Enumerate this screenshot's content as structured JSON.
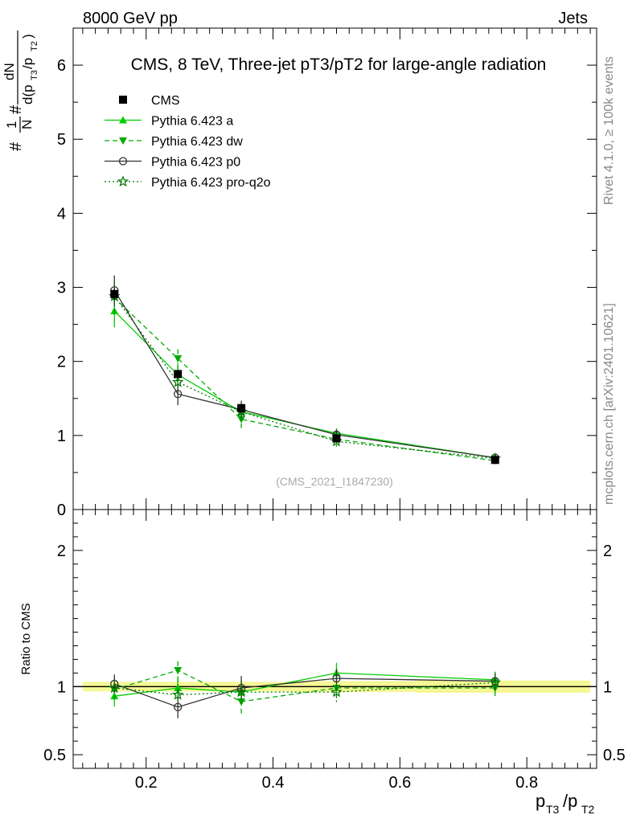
{
  "header": {
    "left": "8000 GeV pp",
    "right": "Jets"
  },
  "side": {
    "rivet": "Rivet 4.1.0, ≥ 100k events",
    "mcplots": "mcplots.cern.ch [arXiv:2401.10621]"
  },
  "chart_data": {
    "type": "line",
    "title": "CMS, 8 TeV, Three-jet pT3/pT2 for large-angle radiation",
    "analysis_tag": "(CMS_2021_I1847230)",
    "xlabel": "p_T3/p_T2",
    "ylabel": "#1/N #dN/d(p_T3/p_T2)",
    "ratio_ylabel": "Ratio to CMS",
    "xlim": [
      0.085,
      0.91
    ],
    "ylim": [
      0,
      6.5
    ],
    "ratio_ylim": [
      0.4,
      2.3
    ],
    "xticks": [
      {
        "value": 0.2,
        "label": "0.2"
      },
      {
        "value": 0.4,
        "label": "0.4"
      },
      {
        "value": 0.6,
        "label": "0.6"
      },
      {
        "value": 0.8,
        "label": "0.8"
      }
    ],
    "yticks": [
      {
        "value": 0,
        "label": "0"
      },
      {
        "value": 1,
        "label": "1"
      },
      {
        "value": 2,
        "label": "2"
      },
      {
        "value": 3,
        "label": "3"
      },
      {
        "value": 4,
        "label": "4"
      },
      {
        "value": 5,
        "label": "5"
      },
      {
        "value": 6,
        "label": "6"
      }
    ],
    "ratio_yticks": [
      {
        "value": 0.5,
        "label": "0.5"
      },
      {
        "value": 1,
        "label": "1"
      },
      {
        "value": 2,
        "label": "2"
      }
    ],
    "x": [
      0.15,
      0.25,
      0.35,
      0.5,
      0.75
    ],
    "data": {
      "name": "CMS",
      "values": [
        2.91,
        1.83,
        1.37,
        0.96,
        0.67
      ],
      "errors": [
        0.07,
        0.05,
        0.04,
        0.04,
        0.03
      ],
      "ratio_band": [
        0.035,
        0.035,
        0.035,
        0.04,
        0.045
      ]
    },
    "series": [
      {
        "name": "Pythia 6.423 a",
        "color": "#00cc00",
        "dash": "",
        "marker": "triangle-up",
        "values": [
          2.68,
          1.82,
          1.32,
          1.03,
          0.7
        ],
        "errors": [
          0.22,
          0.16,
          0.12,
          0.07,
          0.04
        ],
        "ratio": [
          0.93,
          0.99,
          0.96,
          1.1,
          1.05
        ]
      },
      {
        "name": "Pythia 6.423 dw",
        "color": "#00aa00",
        "dash": "6,4",
        "marker": "triangle-down",
        "values": [
          2.86,
          2.04,
          1.22,
          0.95,
          0.66
        ],
        "errors": [
          0.22,
          0.16,
          0.12,
          0.07,
          0.04
        ],
        "ratio": [
          0.98,
          1.12,
          0.89,
          0.99,
          0.99
        ]
      },
      {
        "name": "Pythia 6.423 p0",
        "color": "#333333",
        "dash": "",
        "marker": "circle-open",
        "values": [
          2.96,
          1.56,
          1.35,
          1.01,
          0.7
        ],
        "errors": [
          0.2,
          0.15,
          0.12,
          0.07,
          0.04
        ],
        "ratio": [
          1.02,
          0.85,
          0.99,
          1.06,
          1.04
        ]
      },
      {
        "name": "Pythia 6.423 pro-q2o",
        "color": "#007700",
        "dash": "2,3",
        "marker": "star-open",
        "values": [
          2.88,
          1.72,
          1.32,
          0.92,
          0.69
        ],
        "errors": [
          0.2,
          0.15,
          0.12,
          0.07,
          0.04
        ],
        "ratio": [
          0.99,
          0.94,
          0.96,
          0.96,
          1.03
        ]
      }
    ]
  }
}
